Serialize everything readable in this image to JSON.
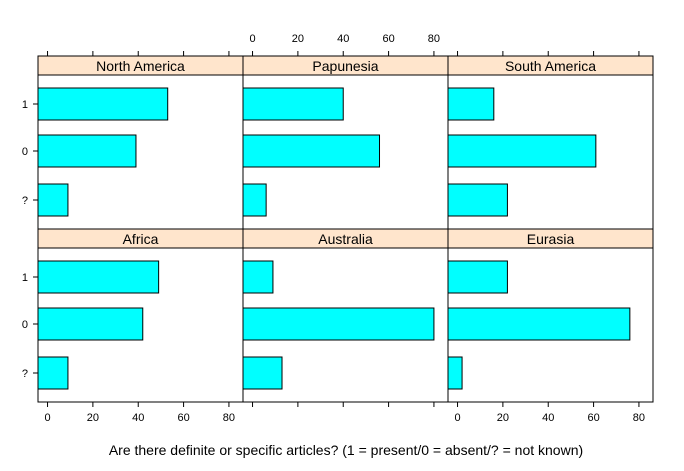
{
  "chart_data": {
    "type": "bar",
    "orientation": "horizontal",
    "layout": "trellis 3x2",
    "xlabel": "Are there definite or specific articles? (1 = present/0 = absent/? = not known)",
    "ylabel": "",
    "categories": [
      "1",
      "0",
      "?"
    ],
    "xlim": [
      -2,
      84
    ],
    "xticks": [
      0,
      20,
      40,
      60,
      80
    ],
    "grid": false,
    "bar_fill": "#00ffff",
    "strip_fill": "#ffe5cc",
    "panels": [
      {
        "title": "North America",
        "values": [
          53,
          39,
          9
        ]
      },
      {
        "title": "Papunesia",
        "values": [
          40,
          56,
          6
        ]
      },
      {
        "title": "South America",
        "values": [
          16,
          61,
          22
        ]
      },
      {
        "title": "Africa",
        "values": [
          49,
          42,
          9
        ]
      },
      {
        "title": "Australia",
        "values": [
          9,
          80,
          13
        ]
      },
      {
        "title": "Eurasia",
        "values": [
          22,
          76,
          2
        ]
      }
    ]
  }
}
